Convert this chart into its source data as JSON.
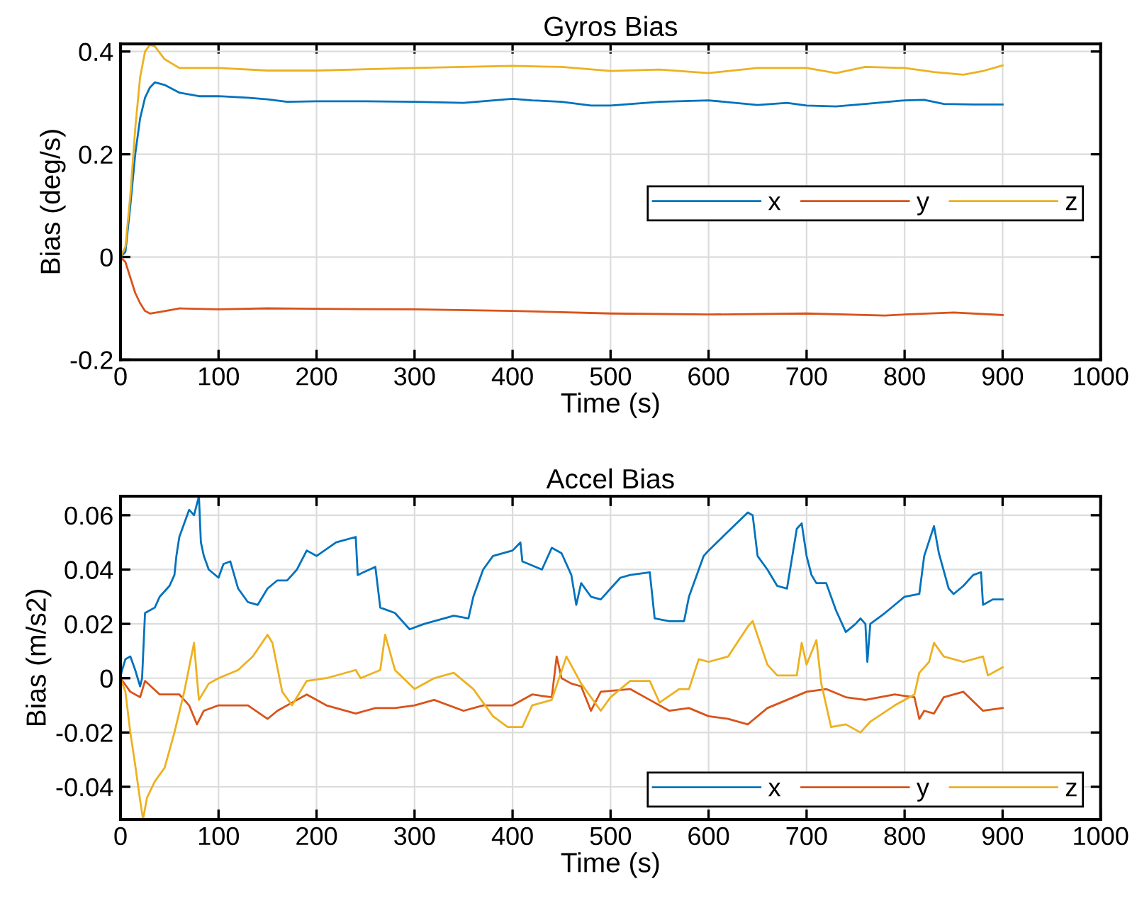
{
  "chart_data": [
    {
      "type": "line",
      "title": "Gyros Bias",
      "xlabel": "Time (s)",
      "ylabel": "Bias (deg/s)",
      "xlim": [
        0,
        1000
      ],
      "xticks": [
        0,
        100,
        200,
        300,
        400,
        500,
        600,
        700,
        800,
        900,
        1000
      ],
      "ylim": [
        -0.2,
        0.415
      ],
      "yticks": [
        -0.2,
        0,
        0.2,
        0.4
      ],
      "grid": true,
      "legend": "right",
      "series": [
        {
          "name": "x",
          "color": "#0072bd",
          "x": [
            0,
            5,
            10,
            15,
            20,
            25,
            30,
            35,
            45,
            60,
            80,
            100,
            130,
            150,
            170,
            200,
            250,
            300,
            350,
            400,
            420,
            450,
            480,
            500,
            550,
            600,
            650,
            680,
            700,
            730,
            760,
            800,
            820,
            840,
            870,
            900
          ],
          "values": [
            0,
            0.01,
            0.1,
            0.2,
            0.27,
            0.31,
            0.33,
            0.34,
            0.335,
            0.32,
            0.313,
            0.313,
            0.31,
            0.307,
            0.302,
            0.303,
            0.303,
            0.302,
            0.3,
            0.308,
            0.305,
            0.302,
            0.295,
            0.295,
            0.302,
            0.305,
            0.296,
            0.3,
            0.295,
            0.293,
            0.298,
            0.305,
            0.306,
            0.298,
            0.297,
            0.297
          ]
        },
        {
          "name": "y",
          "color": "#d95319",
          "x": [
            0,
            5,
            10,
            15,
            20,
            25,
            30,
            40,
            60,
            100,
            150,
            200,
            300,
            400,
            500,
            600,
            700,
            780,
            800,
            850,
            900
          ],
          "values": [
            0,
            -0.01,
            -0.04,
            -0.07,
            -0.09,
            -0.105,
            -0.11,
            -0.107,
            -0.1,
            -0.102,
            -0.1,
            -0.101,
            -0.102,
            -0.105,
            -0.11,
            -0.112,
            -0.11,
            -0.114,
            -0.112,
            -0.108,
            -0.113
          ]
        },
        {
          "name": "z",
          "color": "#edb120",
          "x": [
            0,
            5,
            10,
            15,
            20,
            25,
            30,
            35,
            45,
            60,
            100,
            150,
            200,
            300,
            400,
            450,
            500,
            550,
            600,
            650,
            700,
            730,
            760,
            800,
            830,
            860,
            880,
            900
          ],
          "values": [
            0,
            0.02,
            0.12,
            0.25,
            0.35,
            0.4,
            0.413,
            0.41,
            0.385,
            0.368,
            0.368,
            0.363,
            0.363,
            0.368,
            0.372,
            0.37,
            0.362,
            0.365,
            0.358,
            0.368,
            0.368,
            0.358,
            0.37,
            0.368,
            0.36,
            0.355,
            0.362,
            0.373
          ]
        }
      ]
    },
    {
      "type": "line",
      "title": "Accel Bias",
      "xlabel": "Time (s)",
      "ylabel": "Bias (m/s2)",
      "xlim": [
        0,
        1000
      ],
      "xticks": [
        0,
        100,
        200,
        300,
        400,
        500,
        600,
        700,
        800,
        900,
        1000
      ],
      "ylim": [
        -0.052,
        0.067
      ],
      "yticks": [
        -0.04,
        -0.02,
        0,
        0.02,
        0.04,
        0.06
      ],
      "grid": true,
      "legend": "bottom right",
      "series": [
        {
          "name": "x",
          "color": "#0072bd",
          "x": [
            0,
            5,
            10,
            15,
            20,
            22,
            25,
            35,
            40,
            50,
            55,
            57,
            60,
            70,
            75,
            80,
            82,
            85,
            90,
            100,
            105,
            112,
            120,
            130,
            140,
            150,
            160,
            170,
            180,
            190,
            200,
            220,
            240,
            242,
            260,
            265,
            280,
            295,
            310,
            340,
            355,
            360,
            370,
            380,
            400,
            408,
            410,
            430,
            440,
            450,
            460,
            465,
            470,
            480,
            490,
            500,
            510,
            520,
            540,
            545,
            560,
            575,
            580,
            595,
            600,
            620,
            640,
            645,
            650,
            660,
            670,
            680,
            690,
            695,
            700,
            705,
            710,
            720,
            730,
            740,
            750,
            755,
            760,
            762,
            765,
            780,
            800,
            815,
            820,
            830,
            835,
            845,
            850,
            860,
            870,
            878,
            880,
            890,
            900
          ],
          "values": [
            0.001,
            0.007,
            0.008,
            0.003,
            -0.003,
            0.0,
            0.024,
            0.026,
            0.03,
            0.034,
            0.038,
            0.045,
            0.052,
            0.062,
            0.06,
            0.067,
            0.05,
            0.045,
            0.04,
            0.037,
            0.042,
            0.043,
            0.033,
            0.028,
            0.027,
            0.033,
            0.036,
            0.036,
            0.04,
            0.047,
            0.045,
            0.05,
            0.052,
            0.038,
            0.041,
            0.026,
            0.024,
            0.018,
            0.02,
            0.023,
            0.022,
            0.03,
            0.04,
            0.045,
            0.047,
            0.05,
            0.043,
            0.04,
            0.048,
            0.046,
            0.038,
            0.027,
            0.035,
            0.03,
            0.029,
            0.033,
            0.037,
            0.038,
            0.039,
            0.022,
            0.021,
            0.021,
            0.03,
            0.045,
            0.047,
            0.054,
            0.061,
            0.06,
            0.045,
            0.04,
            0.034,
            0.033,
            0.055,
            0.057,
            0.045,
            0.038,
            0.035,
            0.035,
            0.025,
            0.017,
            0.02,
            0.022,
            0.02,
            0.006,
            0.02,
            0.024,
            0.03,
            0.031,
            0.045,
            0.056,
            0.046,
            0.033,
            0.031,
            0.034,
            0.038,
            0.039,
            0.027,
            0.029,
            0.029
          ]
        },
        {
          "name": "y",
          "color": "#d95319",
          "x": [
            0,
            10,
            20,
            25,
            40,
            60,
            70,
            78,
            85,
            100,
            130,
            150,
            160,
            180,
            190,
            210,
            240,
            260,
            280,
            300,
            320,
            350,
            370,
            400,
            420,
            440,
            445,
            450,
            460,
            470,
            480,
            490,
            520,
            540,
            560,
            580,
            600,
            620,
            640,
            660,
            680,
            700,
            720,
            740,
            760,
            790,
            810,
            815,
            820,
            830,
            840,
            860,
            880,
            900
          ],
          "values": [
            0,
            -0.005,
            -0.007,
            -0.001,
            -0.006,
            -0.006,
            -0.01,
            -0.017,
            -0.012,
            -0.01,
            -0.01,
            -0.015,
            -0.012,
            -0.008,
            -0.006,
            -0.01,
            -0.013,
            -0.011,
            -0.011,
            -0.01,
            -0.008,
            -0.012,
            -0.01,
            -0.01,
            -0.006,
            -0.007,
            0.008,
            0.0,
            -0.002,
            -0.003,
            -0.012,
            -0.005,
            -0.004,
            -0.008,
            -0.012,
            -0.011,
            -0.014,
            -0.015,
            -0.017,
            -0.011,
            -0.008,
            -0.005,
            -0.004,
            -0.007,
            -0.008,
            -0.006,
            -0.007,
            -0.015,
            -0.012,
            -0.013,
            -0.007,
            -0.005,
            -0.012,
            -0.011
          ]
        },
        {
          "name": "z",
          "color": "#edb120",
          "x": [
            0,
            5,
            10,
            15,
            20,
            23,
            27,
            35,
            45,
            55,
            65,
            75,
            78,
            80,
            85,
            90,
            100,
            120,
            135,
            150,
            155,
            165,
            175,
            190,
            210,
            240,
            245,
            265,
            270,
            280,
            300,
            320,
            340,
            360,
            380,
            395,
            410,
            420,
            440,
            455,
            470,
            490,
            500,
            520,
            540,
            550,
            570,
            580,
            590,
            600,
            620,
            640,
            645,
            660,
            670,
            690,
            695,
            700,
            710,
            715,
            725,
            740,
            755,
            765,
            790,
            810,
            815,
            825,
            830,
            840,
            860,
            880,
            885,
            900
          ],
          "values": [
            0,
            -0.005,
            -0.02,
            -0.032,
            -0.045,
            -0.052,
            -0.044,
            -0.038,
            -0.033,
            -0.02,
            -0.005,
            0.013,
            0.0,
            -0.008,
            -0.005,
            -0.002,
            0.0,
            0.003,
            0.008,
            0.016,
            0.013,
            -0.005,
            -0.01,
            -0.001,
            0.0,
            0.003,
            0.0,
            0.003,
            0.016,
            0.003,
            -0.004,
            0.0,
            0.002,
            -0.004,
            -0.014,
            -0.018,
            -0.018,
            -0.01,
            -0.008,
            0.008,
            -0.002,
            -0.012,
            -0.007,
            -0.001,
            -0.001,
            -0.009,
            -0.004,
            -0.004,
            0.007,
            0.006,
            0.008,
            0.019,
            0.021,
            0.005,
            0.001,
            0.001,
            0.013,
            0.005,
            0.014,
            -0.002,
            -0.018,
            -0.017,
            -0.02,
            -0.016,
            -0.01,
            -0.006,
            0.002,
            0.006,
            0.013,
            0.008,
            0.006,
            0.008,
            0.001,
            0.004
          ]
        }
      ]
    }
  ]
}
